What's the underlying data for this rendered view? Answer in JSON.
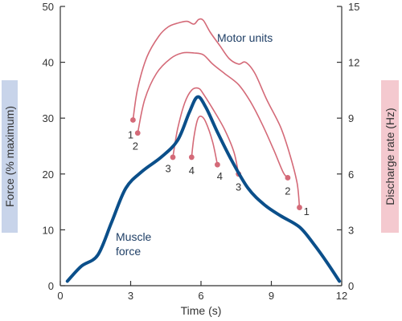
{
  "chart_data": {
    "type": "line",
    "xlabel": "Time (s)",
    "ylabel_left": "Force (% maximum)",
    "ylabel_right": "Discharge rate (Hz)",
    "xlim": [
      0,
      12
    ],
    "ylim_left": [
      0,
      50
    ],
    "ylim_right": [
      0,
      15
    ],
    "xticks": [
      "0",
      "3",
      "6",
      "9",
      "12"
    ],
    "yticks_left": [
      "0",
      "10",
      "20",
      "30",
      "40",
      "50"
    ],
    "yticks_right": [
      "0",
      "3",
      "6",
      "9",
      "12",
      "15"
    ],
    "grid": false,
    "annotations": {
      "motor_units": "Motor units",
      "muscle_force_line1": "Muscle",
      "muscle_force_line2": "force"
    },
    "colors": {
      "force": "#0b4f8a",
      "motor_units": "#d46a78",
      "left_axis_band": "#c8d4ea",
      "right_axis_band": "#f4c9cf",
      "axis": "#333333"
    },
    "series": [
      {
        "name": "Muscle force",
        "axis": "left",
        "x": [
          0.3,
          0.9,
          1.6,
          2.2,
          2.8,
          3.5,
          4.3,
          5.0,
          5.5,
          5.85,
          6.2,
          6.7,
          7.3,
          8.0,
          8.7,
          9.4,
          10.2,
          10.8,
          11.4,
          11.9
        ],
        "y": [
          0.8,
          3.5,
          5.5,
          11.5,
          17.5,
          20.5,
          23.0,
          26.0,
          31.0,
          33.8,
          32.0,
          27.5,
          22.5,
          17.5,
          14.5,
          12.5,
          10.5,
          7.5,
          4.0,
          0.8
        ]
      }
    ],
    "motor_units": [
      {
        "unit": "1",
        "axis": "right",
        "x": [
          3.1,
          3.3,
          3.7,
          4.2,
          4.6,
          5.0,
          5.4,
          5.7,
          5.9,
          6.1,
          6.4,
          6.8,
          7.2,
          7.6,
          7.9,
          8.3,
          8.8,
          9.4,
          9.8,
          10.1,
          10.2
        ],
        "y": [
          8.9,
          10.6,
          12.3,
          13.4,
          13.9,
          14.1,
          14.2,
          14.05,
          14.3,
          14.25,
          13.6,
          12.9,
          12.2,
          11.9,
          12.0,
          11.4,
          10.0,
          8.5,
          7.0,
          5.5,
          4.2
        ],
        "label_start": {
          "x": 3.0,
          "y": 7.9
        },
        "label_end": {
          "x": 10.5,
          "y": 3.8
        }
      },
      {
        "unit": "2",
        "axis": "right",
        "x": [
          3.3,
          3.6,
          4.1,
          4.7,
          5.2,
          5.7,
          6.1,
          6.5,
          7.0,
          7.6,
          8.1,
          8.6,
          9.1,
          9.5,
          9.7
        ],
        "y": [
          8.2,
          10.0,
          11.4,
          12.2,
          12.5,
          12.5,
          12.4,
          11.9,
          11.4,
          10.8,
          9.9,
          8.7,
          7.3,
          6.1,
          5.8
        ],
        "label_start": {
          "x": 3.2,
          "y": 7.3
        },
        "label_end": {
          "x": 9.7,
          "y": 4.9
        }
      },
      {
        "unit": "3",
        "axis": "right",
        "x": [
          4.8,
          5.0,
          5.3,
          5.6,
          5.9,
          6.1,
          6.5,
          7.0,
          7.4,
          7.6
        ],
        "y": [
          6.9,
          8.4,
          9.8,
          10.5,
          10.6,
          10.3,
          9.5,
          8.4,
          7.2,
          6.0
        ],
        "label_start": {
          "x": 4.6,
          "y": 6.1
        },
        "label_end": {
          "x": 7.6,
          "y": 5.1
        }
      },
      {
        "unit": "4",
        "axis": "right",
        "x": [
          5.6,
          5.7,
          5.85,
          6.0,
          6.2,
          6.5,
          6.7
        ],
        "y": [
          6.9,
          8.0,
          8.9,
          9.1,
          8.8,
          7.7,
          6.5
        ],
        "label_start": {
          "x": 5.6,
          "y": 6.0
        },
        "label_end": {
          "x": 6.8,
          "y": 5.7
        }
      }
    ]
  }
}
